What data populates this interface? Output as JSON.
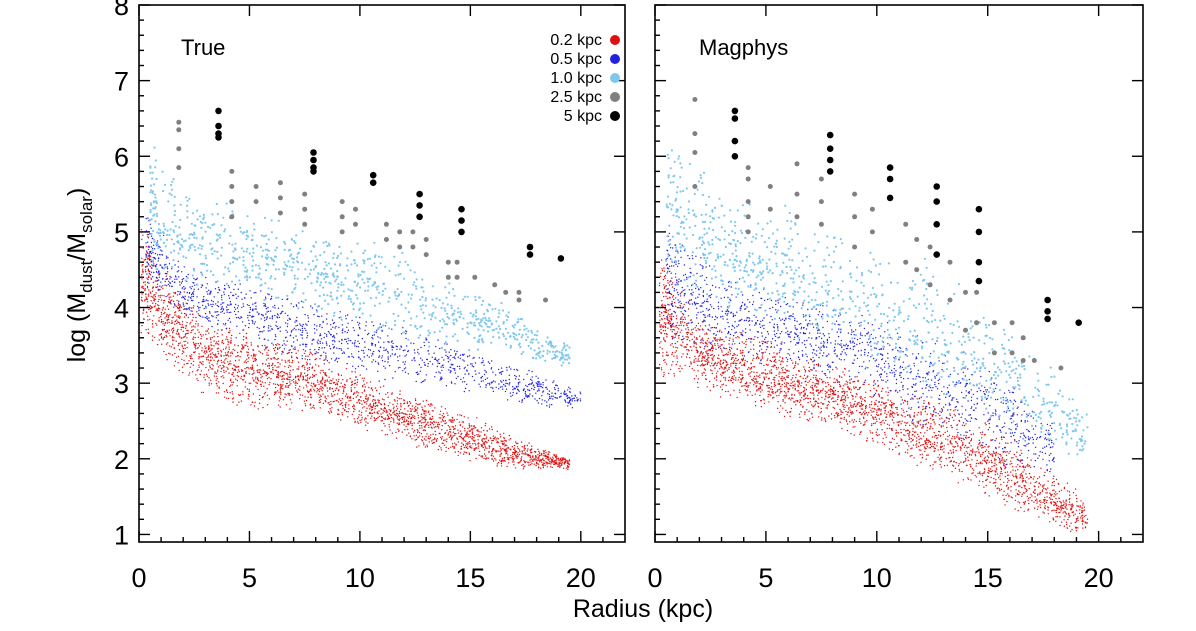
{
  "chart_data": [
    {
      "type": "scatter",
      "title": "True",
      "xlabel": "Radius (kpc)",
      "ylabel": "log (M_dust/M_solar)",
      "xlim": [
        0,
        22
      ],
      "ylim": [
        0.9,
        8
      ],
      "xticks": [
        "0",
        "5",
        "10",
        "15",
        "20"
      ],
      "yticks": [
        "1",
        "2",
        "3",
        "4",
        "5",
        "6",
        "7",
        "8"
      ],
      "series": [
        {
          "name": "0.2 kpc",
          "color": "#dd1111",
          "envelope": [
            [
              0.1,
              3.6,
              5.4
            ],
            [
              1,
              3.3,
              4.6
            ],
            [
              3,
              2.8,
              3.9
            ],
            [
              5,
              2.6,
              3.7
            ],
            [
              7,
              2.6,
              3.6
            ],
            [
              9,
              2.5,
              3.3
            ],
            [
              11,
              2.3,
              3.0
            ],
            [
              13,
              2.1,
              2.8
            ],
            [
              15,
              1.95,
              2.6
            ],
            [
              17,
              1.85,
              2.3
            ],
            [
              19.5,
              1.85,
              2.0
            ]
          ]
        },
        {
          "name": "0.5 kpc",
          "color": "#2222dd",
          "envelope": [
            [
              0.3,
              4.2,
              5.3
            ],
            [
              2,
              3.8,
              4.6
            ],
            [
              5,
              3.5,
              4.3
            ],
            [
              8,
              3.2,
              4.1
            ],
            [
              11,
              3.0,
              3.9
            ],
            [
              14,
              2.9,
              3.6
            ],
            [
              17,
              2.7,
              3.3
            ],
            [
              20,
              2.65,
              2.9
            ]
          ]
        },
        {
          "name": "1.0 kpc",
          "color": "#7ec8ee",
          "envelope": [
            [
              0.5,
              4.5,
              6.3
            ],
            [
              2,
              4.2,
              5.6
            ],
            [
              5,
              4.1,
              5.3
            ],
            [
              8,
              3.9,
              5.1
            ],
            [
              11,
              3.6,
              4.9
            ],
            [
              14,
              3.4,
              4.4
            ],
            [
              17,
              3.3,
              4.0
            ],
            [
              19.5,
              3.2,
              3.5
            ]
          ]
        },
        {
          "name": "2.5 kpc",
          "color": "#808080",
          "points": [
            [
              1.8,
              6.45
            ],
            [
              1.8,
              6.35
            ],
            [
              1.8,
              6.1
            ],
            [
              1.8,
              5.85
            ],
            [
              4.2,
              5.8
            ],
            [
              4.2,
              5.6
            ],
            [
              4.2,
              5.4
            ],
            [
              4.2,
              5.2
            ],
            [
              5.3,
              5.6
            ],
            [
              5.3,
              5.4
            ],
            [
              6.4,
              5.65
            ],
            [
              6.4,
              5.45
            ],
            [
              6.4,
              5.25
            ],
            [
              7.5,
              5.5
            ],
            [
              7.5,
              5.3
            ],
            [
              7.5,
              5.1
            ],
            [
              9.2,
              5.4
            ],
            [
              9.2,
              5.2
            ],
            [
              9.2,
              5.0
            ],
            [
              9.8,
              5.3
            ],
            [
              9.8,
              5.1
            ],
            [
              11.2,
              5.1
            ],
            [
              11.2,
              4.9
            ],
            [
              11.8,
              5.0
            ],
            [
              11.8,
              4.8
            ],
            [
              12.4,
              5.0
            ],
            [
              12.4,
              4.8
            ],
            [
              13.0,
              4.9
            ],
            [
              13.0,
              4.7
            ],
            [
              14.0,
              4.6
            ],
            [
              14.0,
              4.4
            ],
            [
              14.4,
              4.6
            ],
            [
              14.4,
              4.4
            ],
            [
              15.2,
              4.4
            ],
            [
              16.1,
              4.3
            ],
            [
              16.6,
              4.2
            ],
            [
              17.2,
              4.2
            ],
            [
              17.2,
              4.1
            ],
            [
              18.4,
              4.1
            ]
          ]
        },
        {
          "name": "5 kpc",
          "color": "#000000",
          "points": [
            [
              3.6,
              6.6
            ],
            [
              3.6,
              6.4
            ],
            [
              3.6,
              6.3
            ],
            [
              3.6,
              6.25
            ],
            [
              7.9,
              6.05
            ],
            [
              7.9,
              5.95
            ],
            [
              7.9,
              5.85
            ],
            [
              7.9,
              5.8
            ],
            [
              10.6,
              5.75
            ],
            [
              10.6,
              5.65
            ],
            [
              12.7,
              5.5
            ],
            [
              12.7,
              5.35
            ],
            [
              12.7,
              5.2
            ],
            [
              14.6,
              5.3
            ],
            [
              14.6,
              5.15
            ],
            [
              14.6,
              5.0
            ],
            [
              17.7,
              4.8
            ],
            [
              17.7,
              4.7
            ],
            [
              19.1,
              4.65
            ]
          ]
        }
      ]
    },
    {
      "type": "scatter",
      "title": "Magphys",
      "xlabel": "Radius (kpc)",
      "ylabel": "log (M_dust/M_solar)",
      "xlim": [
        0,
        22
      ],
      "ylim": [
        0.9,
        8
      ],
      "xticks": [
        "0",
        "5",
        "10",
        "15",
        "20"
      ],
      "yticks": [
        "1",
        "2",
        "3",
        "4",
        "5",
        "6",
        "7",
        "8"
      ],
      "series": [
        {
          "name": "0.2 kpc",
          "color": "#dd1111",
          "envelope": [
            [
              0.2,
              3.0,
              4.9
            ],
            [
              2,
              2.9,
              3.9
            ],
            [
              5,
              2.6,
              3.6
            ],
            [
              8,
              2.4,
              3.3
            ],
            [
              11,
              2.0,
              3.0
            ],
            [
              14,
              1.6,
              2.7
            ],
            [
              16,
              1.3,
              2.3
            ],
            [
              18,
              1.05,
              1.8
            ],
            [
              19.5,
              0.95,
              1.5
            ]
          ]
        },
        {
          "name": "0.5 kpc",
          "color": "#2222dd",
          "envelope": [
            [
              0.5,
              3.6,
              5.1
            ],
            [
              3,
              3.3,
              4.5
            ],
            [
              6,
              3.2,
              4.2
            ],
            [
              9,
              2.9,
              4.0
            ],
            [
              12,
              2.4,
              3.7
            ],
            [
              15,
              2.0,
              3.3
            ],
            [
              18,
              1.7,
              2.6
            ]
          ]
        },
        {
          "name": "1.0 kpc",
          "color": "#7ec8ee",
          "envelope": [
            [
              0.5,
              4.3,
              6.3
            ],
            [
              3,
              3.9,
              5.6
            ],
            [
              6,
              3.6,
              5.4
            ],
            [
              9,
              3.2,
              5.1
            ],
            [
              12,
              2.8,
              4.8
            ],
            [
              15,
              2.4,
              4.1
            ],
            [
              18,
              2.1,
              3.2
            ],
            [
              19.5,
              1.9,
              2.6
            ]
          ]
        },
        {
          "name": "2.5 kpc",
          "color": "#808080",
          "points": [
            [
              1.8,
              6.75
            ],
            [
              1.8,
              6.3
            ],
            [
              1.8,
              6.05
            ],
            [
              1.8,
              5.6
            ],
            [
              4.2,
              5.85
            ],
            [
              4.2,
              5.7
            ],
            [
              4.2,
              5.4
            ],
            [
              4.2,
              5.2
            ],
            [
              4.2,
              5.0
            ],
            [
              5.2,
              5.6
            ],
            [
              5.2,
              5.3
            ],
            [
              6.4,
              5.9
            ],
            [
              6.4,
              5.5
            ],
            [
              6.4,
              5.2
            ],
            [
              7.5,
              5.7
            ],
            [
              7.5,
              5.4
            ],
            [
              7.5,
              5.1
            ],
            [
              9.0,
              5.5
            ],
            [
              9.0,
              5.2
            ],
            [
              9.0,
              4.8
            ],
            [
              9.8,
              5.3
            ],
            [
              9.8,
              5.0
            ],
            [
              11.3,
              5.1
            ],
            [
              11.3,
              4.6
            ],
            [
              11.8,
              4.9
            ],
            [
              11.8,
              4.5
            ],
            [
              12.4,
              4.8
            ],
            [
              12.4,
              4.3
            ],
            [
              13.3,
              4.6
            ],
            [
              13.3,
              4.1
            ],
            [
              14.0,
              4.2
            ],
            [
              14.0,
              3.7
            ],
            [
              14.5,
              4.2
            ],
            [
              14.5,
              3.8
            ],
            [
              15.3,
              3.8
            ],
            [
              15.3,
              3.4
            ],
            [
              16.1,
              3.8
            ],
            [
              16.1,
              3.4
            ],
            [
              16.6,
              3.6
            ],
            [
              16.6,
              3.3
            ],
            [
              17.1,
              3.3
            ],
            [
              18.3,
              3.2
            ]
          ]
        },
        {
          "name": "5 kpc",
          "color": "#000000",
          "points": [
            [
              3.6,
              6.6
            ],
            [
              3.6,
              6.5
            ],
            [
              3.6,
              6.2
            ],
            [
              3.6,
              6.0
            ],
            [
              7.9,
              6.28
            ],
            [
              7.9,
              6.1
            ],
            [
              7.9,
              5.95
            ],
            [
              7.9,
              5.8
            ],
            [
              10.6,
              5.85
            ],
            [
              10.6,
              5.7
            ],
            [
              10.6,
              5.45
            ],
            [
              12.7,
              5.6
            ],
            [
              12.7,
              5.4
            ],
            [
              12.7,
              5.1
            ],
            [
              12.7,
              4.7
            ],
            [
              14.6,
              5.3
            ],
            [
              14.6,
              5.0
            ],
            [
              14.6,
              4.6
            ],
            [
              14.6,
              4.35
            ],
            [
              17.7,
              4.1
            ],
            [
              17.7,
              3.95
            ],
            [
              17.7,
              3.85
            ],
            [
              19.1,
              3.8
            ]
          ]
        }
      ]
    }
  ]
}
